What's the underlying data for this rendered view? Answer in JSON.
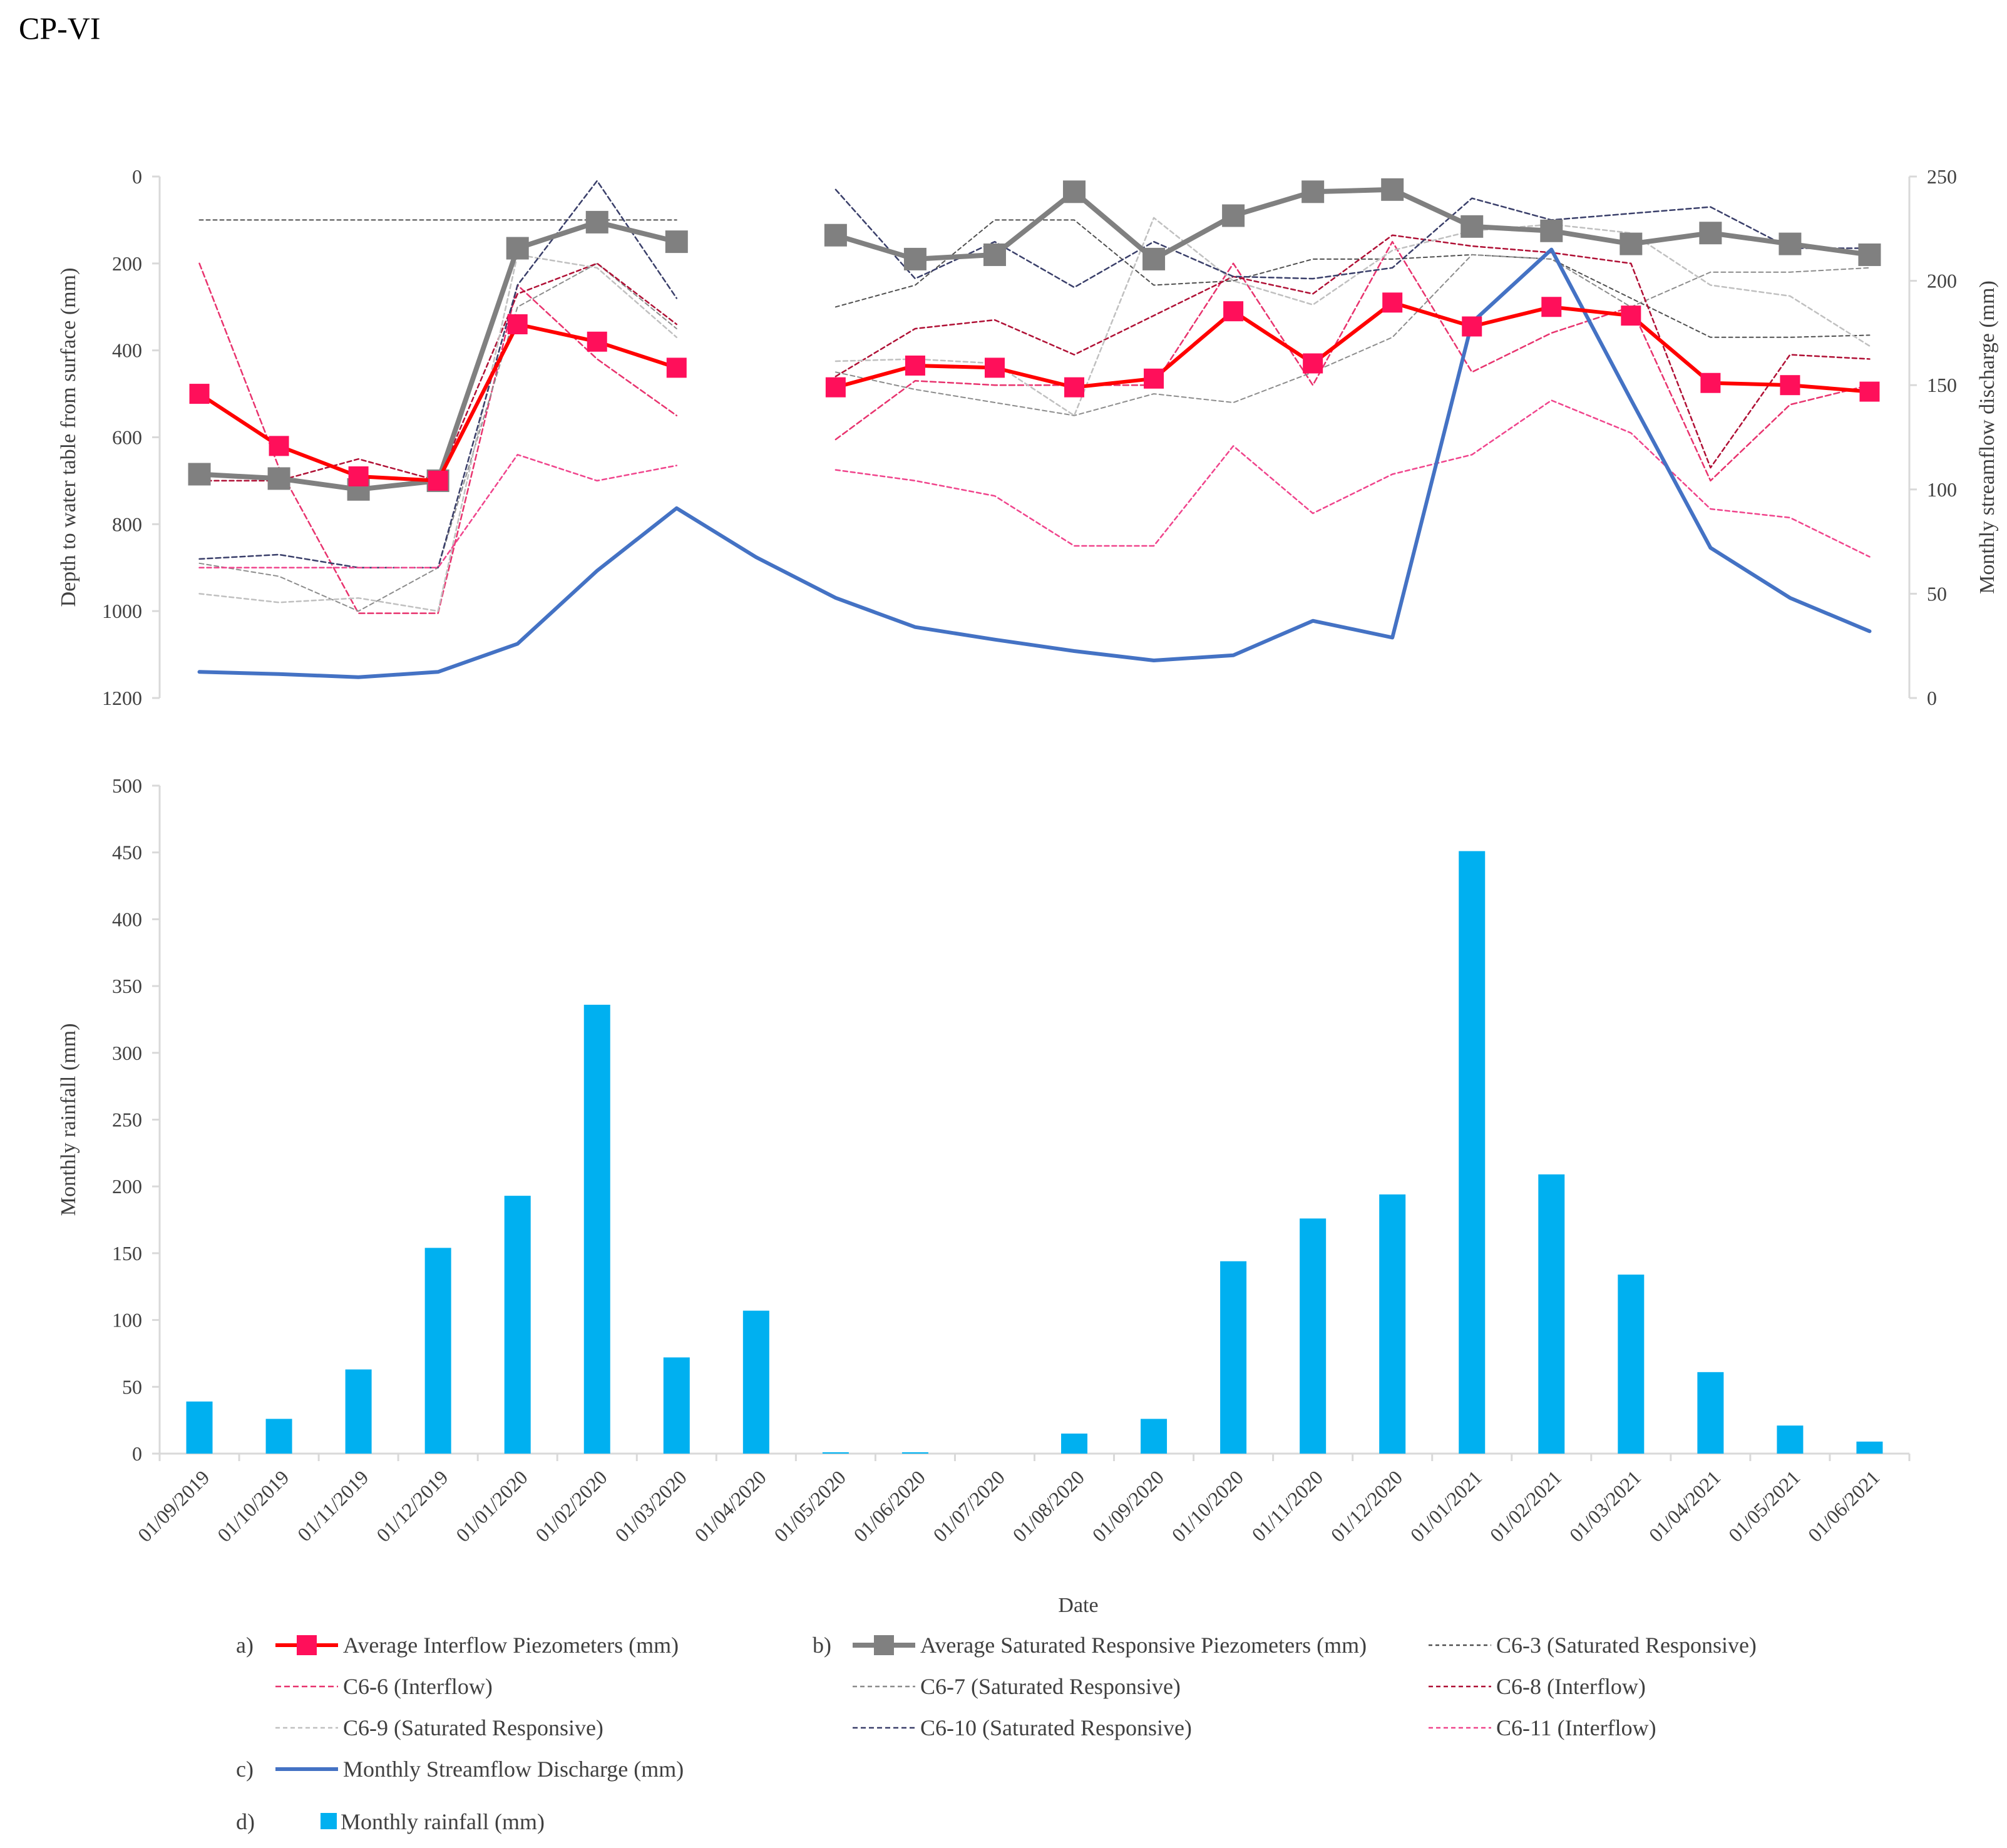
{
  "figure_title": "CP-VI",
  "chart_data": [
    {
      "type": "line",
      "title": "",
      "ylabel": "Depth to water table from surface (mm)",
      "y2label": "Monthly streamflow discharge (mm)",
      "ylim": [
        0,
        1200
      ],
      "y_inverted": true,
      "y2lim": [
        0,
        250
      ],
      "yticks": [
        "0",
        "200",
        "400",
        "600",
        "800",
        "1000",
        "1200"
      ],
      "y2ticks": [
        "0",
        "50",
        "100",
        "150",
        "200",
        "250"
      ],
      "grid": false,
      "categories": [
        "01/09/2019",
        "01/10/2019",
        "01/11/2019",
        "01/12/2019",
        "01/01/2020",
        "01/02/2020",
        "01/03/2020",
        "01/04/2020",
        "01/05/2020",
        "01/06/2020",
        "01/07/2020",
        "01/08/2020",
        "01/09/2020",
        "01/10/2020",
        "01/11/2020",
        "01/12/2020",
        "01/01/2021",
        "01/02/2021",
        "01/03/2021",
        "01/04/2021",
        "01/05/2021",
        "01/06/2021"
      ],
      "series": [
        {
          "key": "avg_interflow",
          "name": "Average Interflow Piezometers (mm)",
          "axis": "left",
          "color": "#ff0000",
          "marker_color": "#ff0f5a",
          "width": 6,
          "marker": "square",
          "values": [
            500,
            620,
            690,
            700,
            340,
            380,
            440,
            null,
            485,
            435,
            440,
            485,
            465,
            310,
            430,
            290,
            345,
            300,
            320,
            475,
            480,
            495
          ]
        },
        {
          "key": "avg_saturated",
          "name": "Average Saturated Responsive Piezometers (mm)",
          "axis": "left",
          "color": "#808080",
          "width": 8,
          "marker": "square",
          "values": [
            685,
            695,
            720,
            700,
            165,
            105,
            150,
            null,
            135,
            190,
            180,
            35,
            190,
            90,
            35,
            30,
            115,
            125,
            155,
            130,
            155,
            180
          ]
        },
        {
          "key": "c6_3",
          "name": "C6-3 (Saturated Responsive)",
          "axis": "left",
          "color": "#505050",
          "dash": "6,5",
          "width": 2,
          "values": [
            100,
            100,
            100,
            100,
            100,
            100,
            100,
            null,
            300,
            250,
            100,
            100,
            250,
            240,
            190,
            190,
            180,
            190,
            280,
            370,
            370,
            365
          ]
        },
        {
          "key": "c6_6",
          "name": "C6-6 (Interflow)",
          "axis": "left",
          "color": "#e8336e",
          "dash": "9,5",
          "width": 2.5,
          "values": [
            200,
            670,
            1005,
            1005,
            250,
            420,
            550,
            null,
            605,
            470,
            480,
            480,
            480,
            200,
            480,
            150,
            450,
            360,
            300,
            700,
            525,
            480
          ]
        },
        {
          "key": "c6_7",
          "name": "C6-7 (Saturated Responsive)",
          "axis": "left",
          "color": "#8c8c8c",
          "dash": "7,5",
          "width": 2,
          "values": [
            890,
            920,
            1000,
            900,
            300,
            200,
            350,
            null,
            450,
            490,
            520,
            550,
            500,
            520,
            450,
            370,
            180,
            190,
            300,
            220,
            220,
            210
          ]
        },
        {
          "key": "c6_8",
          "name": "C6-8 (Interflow)",
          "axis": "left",
          "color": "#b01035",
          "dash": "7,5",
          "width": 2.5,
          "values": [
            700,
            700,
            650,
            700,
            270,
            200,
            340,
            null,
            460,
            350,
            330,
            410,
            320,
            230,
            270,
            135,
            160,
            175,
            200,
            670,
            410,
            420
          ]
        },
        {
          "key": "c6_9",
          "name": "C6-9 (Saturated Responsive)",
          "axis": "left",
          "color": "#c0c0c0",
          "dash": "7,5",
          "width": 2.5,
          "values": [
            960,
            980,
            970,
            1000,
            180,
            210,
            370,
            null,
            425,
            420,
            430,
            550,
            95,
            240,
            295,
            170,
            125,
            110,
            130,
            250,
            275,
            390
          ]
        },
        {
          "key": "c6_10",
          "name": "C6-10 (Saturated Responsive)",
          "axis": "left",
          "color": "#3a3f6a",
          "dash": "8,5",
          "width": 2.5,
          "values": [
            880,
            870,
            900,
            900,
            250,
            10,
            280,
            null,
            30,
            235,
            150,
            255,
            150,
            230,
            235,
            210,
            50,
            100,
            85,
            70,
            165,
            165
          ]
        },
        {
          "key": "c6_11",
          "name": "C6-11 (Interflow)",
          "axis": "left",
          "color": "#f0448c",
          "dash": "7,5",
          "width": 2.5,
          "values": [
            900,
            900,
            900,
            900,
            640,
            700,
            665,
            null,
            675,
            700,
            735,
            850,
            850,
            620,
            775,
            685,
            640,
            515,
            590,
            765,
            785,
            875
          ]
        },
        {
          "key": "streamflow",
          "name": "Monthly Streamflow Discharge (mm)",
          "axis": "right",
          "color": "#4472c4",
          "width": 6,
          "values": [
            12.5,
            11.5,
            10,
            12.5,
            26,
            61,
            91,
            67.5,
            48,
            34,
            28,
            22.5,
            18,
            20.5,
            37,
            29,
            180,
            215,
            143,
            72,
            48,
            32
          ]
        }
      ],
      "legend_position": "bottom",
      "legend_labels": [
        "a)",
        "b)",
        "c)",
        "d)"
      ]
    },
    {
      "type": "bar",
      "title": "",
      "xlabel": "Date",
      "ylabel": "Monthly rainfall (mm)",
      "ylim": [
        0,
        500
      ],
      "yticks": [
        "0",
        "50",
        "100",
        "150",
        "200",
        "250",
        "300",
        "350",
        "400",
        "450",
        "500"
      ],
      "grid": false,
      "categories": [
        "01/09/2019",
        "01/10/2019",
        "01/11/2019",
        "01/12/2019",
        "01/01/2020",
        "01/02/2020",
        "01/03/2020",
        "01/04/2020",
        "01/05/2020",
        "01/06/2020",
        "01/07/2020",
        "01/08/2020",
        "01/09/2020",
        "01/10/2020",
        "01/11/2020",
        "01/12/2020",
        "01/01/2021",
        "01/02/2021",
        "01/03/2021",
        "01/04/2021",
        "01/05/2021",
        "01/06/2021"
      ],
      "series": [
        {
          "name": "Monthly rainfall (mm)",
          "color": "#00b0f0",
          "values": [
            39,
            26,
            63,
            154,
            193,
            336,
            72,
            107,
            1,
            1,
            0,
            15,
            26,
            144,
            176,
            194,
            451,
            209,
            134,
            61,
            21,
            9
          ]
        }
      ]
    }
  ]
}
